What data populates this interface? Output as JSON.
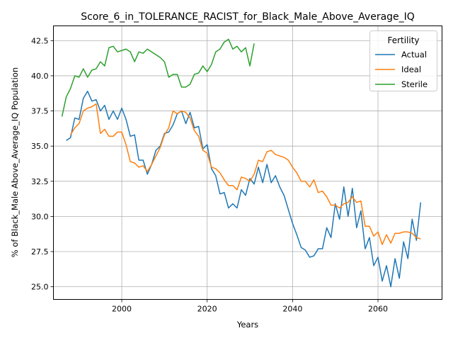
{
  "chart_data": {
    "type": "line",
    "title": "Score_6_in_TOLERANCE_RACIST_for_Black_Male_Above_Average_IQ",
    "xlabel": "Years",
    "ylabel": "% of Black_Male Above_Average_IQ Population",
    "xlim": [
      1984,
      2075
    ],
    "ylim": [
      24.1,
      43.55
    ],
    "xticks": [
      2000,
      2020,
      2040,
      2060
    ],
    "xtick_labels": [
      "2000",
      "2020",
      "2040",
      "2060"
    ],
    "yticks": [
      25.0,
      27.5,
      30.0,
      32.5,
      35.0,
      37.5,
      40.0,
      42.5
    ],
    "ytick_labels": [
      "25.0",
      "27.5",
      "30.0",
      "32.5",
      "35.0",
      "37.5",
      "40.0",
      "42.5"
    ],
    "grid": true,
    "legend": {
      "title": "Fertility",
      "placement": "top-right"
    },
    "series": [
      {
        "name": "Actual",
        "color": "#1f77b4",
        "x": [
          1987,
          1988,
          1989,
          1990,
          1991,
          1992,
          1993,
          1994,
          1995,
          1996,
          1997,
          1998,
          1999,
          2000,
          2001,
          2002,
          2003,
          2004,
          2005,
          2006,
          2007,
          2008,
          2009,
          2010,
          2011,
          2012,
          2013,
          2014,
          2015,
          2016,
          2017,
          2018,
          2019,
          2020,
          2021,
          2022,
          2023,
          2024,
          2025,
          2026,
          2027,
          2028,
          2029,
          2030,
          2031,
          2032,
          2033,
          2034,
          2035,
          2036,
          2037,
          2038,
          2039,
          2040,
          2041,
          2042,
          2043,
          2044,
          2045,
          2046,
          2047,
          2048,
          2049,
          2050,
          2051,
          2052,
          2053,
          2054,
          2055,
          2056,
          2057,
          2058,
          2059,
          2060,
          2061,
          2062,
          2063,
          2064,
          2065,
          2066,
          2067,
          2068,
          2069,
          2070
        ],
        "values": [
          35.4,
          35.6,
          37.0,
          36.9,
          38.4,
          38.9,
          38.2,
          38.3,
          37.5,
          37.9,
          36.9,
          37.5,
          36.9,
          37.7,
          36.9,
          35.7,
          35.8,
          34.0,
          34.0,
          33.0,
          33.7,
          34.7,
          35.0,
          35.9,
          36.0,
          36.5,
          37.3,
          37.5,
          36.6,
          37.4,
          36.3,
          36.4,
          34.8,
          35.1,
          33.4,
          32.9,
          31.6,
          31.7,
          30.6,
          30.9,
          30.6,
          31.9,
          31.5,
          32.7,
          32.3,
          33.5,
          32.4,
          33.7,
          32.4,
          32.9,
          32.1,
          31.5,
          30.5,
          29.5,
          28.7,
          27.8,
          27.6,
          27.1,
          27.2,
          27.7,
          27.7,
          29.2,
          28.5,
          30.9,
          29.8,
          32.1,
          30.0,
          32.0,
          29.2,
          30.4,
          27.7,
          28.5,
          26.5,
          27.1,
          25.4,
          26.5,
          25.0,
          27.0,
          25.6,
          28.2,
          27.0,
          29.8,
          28.3,
          31.0
        ]
      },
      {
        "name": "Ideal",
        "color": "#ff7f0e",
        "x": [
          1988,
          1989,
          1990,
          1991,
          1992,
          1993,
          1994,
          1995,
          1996,
          1997,
          1998,
          1999,
          2000,
          2001,
          2002,
          2003,
          2004,
          2005,
          2006,
          2007,
          2008,
          2009,
          2010,
          2011,
          2012,
          2013,
          2014,
          2015,
          2016,
          2017,
          2018,
          2019,
          2020,
          2021,
          2022,
          2023,
          2024,
          2025,
          2026,
          2027,
          2028,
          2029,
          2030,
          2031,
          2032,
          2033,
          2034,
          2035,
          2036,
          2037,
          2038,
          2039,
          2040,
          2041,
          2042,
          2043,
          2044,
          2045,
          2046,
          2047,
          2048,
          2049,
          2050,
          2051,
          2052,
          2053,
          2054,
          2055,
          2056,
          2057,
          2058,
          2059,
          2060,
          2061,
          2062,
          2063,
          2064,
          2065,
          2066,
          2067,
          2068,
          2069,
          2070
        ],
        "values": [
          35.8,
          36.3,
          36.6,
          37.5,
          37.7,
          37.8,
          38.0,
          35.9,
          36.2,
          35.7,
          35.7,
          36.0,
          36.0,
          35.1,
          33.9,
          33.8,
          33.5,
          33.6,
          33.2,
          33.7,
          34.3,
          34.9,
          35.8,
          36.3,
          37.5,
          37.3,
          37.5,
          37.4,
          37.0,
          36.1,
          35.7,
          34.7,
          34.5,
          33.5,
          33.4,
          33.1,
          32.6,
          32.2,
          32.2,
          31.9,
          32.8,
          32.7,
          32.5,
          33.0,
          34.0,
          33.9,
          34.6,
          34.7,
          34.4,
          34.3,
          34.2,
          34.0,
          33.5,
          33.1,
          32.5,
          32.5,
          32.1,
          32.6,
          31.7,
          31.8,
          31.4,
          30.8,
          30.8,
          30.6,
          30.9,
          31.0,
          31.4,
          31.0,
          31.1,
          29.3,
          29.3,
          28.6,
          28.9,
          28.0,
          28.7,
          28.1,
          28.8,
          28.8,
          28.9,
          28.9,
          28.8,
          28.5,
          28.4
        ]
      },
      {
        "name": "Sterile",
        "color": "#2ca02c",
        "x": [
          1986,
          1987,
          1988,
          1989,
          1990,
          1991,
          1992,
          1993,
          1994,
          1995,
          1996,
          1997,
          1998,
          1999,
          2000,
          2001,
          2002,
          2003,
          2004,
          2005,
          2006,
          2007,
          2008,
          2009,
          2010,
          2011,
          2012,
          2013,
          2014,
          2015,
          2016,
          2017,
          2018,
          2019,
          2020,
          2021,
          2022,
          2023,
          2024,
          2025,
          2026,
          2027,
          2028,
          2029,
          2030,
          2031
        ],
        "values": [
          37.1,
          38.5,
          39.1,
          40.0,
          39.9,
          40.5,
          39.9,
          40.4,
          40.5,
          41.0,
          40.7,
          42.0,
          42.1,
          41.7,
          41.8,
          41.9,
          41.7,
          41.0,
          41.7,
          41.6,
          41.9,
          41.7,
          41.5,
          41.3,
          41.0,
          39.9,
          40.1,
          40.1,
          39.2,
          39.2,
          39.4,
          40.1,
          40.2,
          40.7,
          40.3,
          40.8,
          41.7,
          41.9,
          42.4,
          42.6,
          41.9,
          42.1,
          41.7,
          42.0,
          40.7,
          42.3
        ]
      }
    ]
  }
}
